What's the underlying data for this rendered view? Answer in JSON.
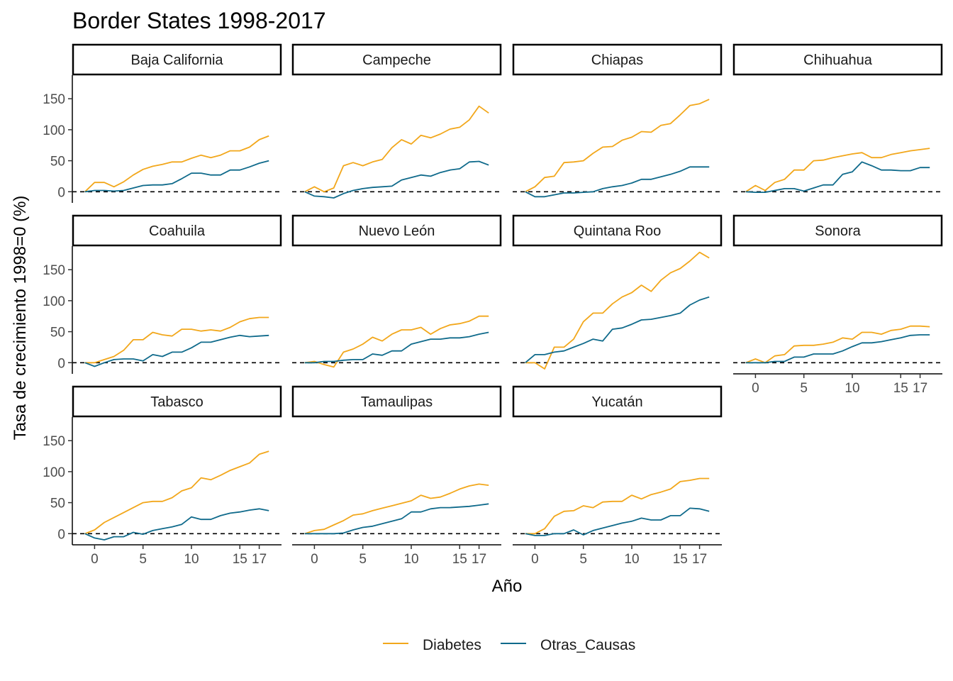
{
  "chart_data": {
    "type": "line",
    "title": "Border States 1998-2017",
    "xlabel": "Año",
    "ylabel": "Tasa de crecimiento 1998=0 (%)",
    "x": [
      -1,
      0,
      1,
      2,
      3,
      4,
      5,
      6,
      7,
      8,
      9,
      10,
      11,
      12,
      13,
      14,
      15,
      16,
      17,
      18
    ],
    "xlim": [
      -2.3,
      19.3
    ],
    "ylim": [
      -18,
      188
    ],
    "x_ticks": [
      0,
      5,
      10,
      15,
      17
    ],
    "x_tick_labels": [
      "0",
      "5",
      "10",
      "15",
      "17"
    ],
    "y_ticks": [
      0,
      50,
      100,
      150
    ],
    "y_tick_labels": [
      "0",
      "50",
      "100",
      "150"
    ],
    "reference_line": 0,
    "legend_position": "bottom",
    "colors": {
      "Diabetes": "#F2A71B",
      "Otras_Causas": "#0F6A8B"
    },
    "grid": false,
    "panels": [
      {
        "name": "Baja California",
        "series": [
          {
            "name": "Diabetes",
            "values": [
              0,
              15,
              15,
              8,
              16,
              27,
              36,
              41,
              44,
              48,
              48,
              54,
              59,
              55,
              59,
              66,
              66,
              72,
              84,
              90
            ]
          },
          {
            "name": "Otras_Causas",
            "values": [
              0,
              2,
              2,
              1,
              2,
              6,
              10,
              11,
              11,
              13,
              21,
              30,
              30,
              27,
              27,
              35,
              35,
              40,
              46,
              50
            ]
          }
        ]
      },
      {
        "name": "Campeche",
        "series": [
          {
            "name": "Diabetes",
            "values": [
              0,
              8,
              0,
              6,
              42,
              47,
              42,
              48,
              52,
              71,
              84,
              77,
              91,
              87,
              93,
              101,
              104,
              116,
              138,
              127
            ]
          },
          {
            "name": "Otras_Causas",
            "values": [
              0,
              -7,
              -8,
              -10,
              -3,
              2,
              5,
              7,
              8,
              9,
              19,
              23,
              27,
              25,
              31,
              35,
              37,
              48,
              49,
              43
            ]
          }
        ]
      },
      {
        "name": "Chiapas",
        "series": [
          {
            "name": "Diabetes",
            "values": [
              0,
              8,
              23,
              25,
              47,
              48,
              50,
              62,
              72,
              73,
              83,
              88,
              97,
              96,
              107,
              110,
              124,
              139,
              142,
              149
            ]
          },
          {
            "name": "Otras_Causas",
            "values": [
              0,
              -8,
              -8,
              -5,
              -2,
              -2,
              -1,
              0,
              5,
              8,
              10,
              14,
              20,
              20,
              24,
              28,
              33,
              40,
              40,
              40
            ]
          }
        ]
      },
      {
        "name": "Chihuahua",
        "series": [
          {
            "name": "Diabetes",
            "values": [
              0,
              10,
              2,
              15,
              20,
              35,
              35,
              50,
              51,
              55,
              58,
              61,
              63,
              55,
              55,
              60,
              63,
              66,
              68,
              70
            ]
          },
          {
            "name": "Otras_Causas",
            "values": [
              0,
              -1,
              -1,
              2,
              5,
              5,
              1,
              6,
              11,
              11,
              28,
              32,
              48,
              42,
              35,
              35,
              34,
              34,
              39,
              39
            ]
          }
        ]
      },
      {
        "name": "Coahuila",
        "series": [
          {
            "name": "Diabetes",
            "values": [
              0,
              0,
              5,
              10,
              20,
              37,
              37,
              49,
              45,
              43,
              54,
              54,
              51,
              53,
              51,
              57,
              66,
              71,
              73,
              73
            ]
          },
          {
            "name": "Otras_Causas",
            "values": [
              0,
              -6,
              0,
              5,
              6,
              6,
              3,
              13,
              10,
              17,
              17,
              24,
              33,
              33,
              37,
              41,
              44,
              42,
              43,
              44
            ]
          }
        ]
      },
      {
        "name": "Nuevo León",
        "series": [
          {
            "name": "Diabetes",
            "values": [
              0,
              2,
              -3,
              -7,
              17,
              22,
              30,
              41,
              35,
              46,
              53,
              53,
              57,
              46,
              55,
              61,
              63,
              67,
              75,
              75
            ]
          },
          {
            "name": "Otras_Causas",
            "values": [
              0,
              0,
              2,
              2,
              4,
              5,
              5,
              14,
              12,
              19,
              19,
              30,
              34,
              38,
              38,
              40,
              40,
              42,
              46,
              49
            ]
          }
        ]
      },
      {
        "name": "Quintana Roo",
        "series": [
          {
            "name": "Diabetes",
            "values": [
              0,
              0,
              -10,
              25,
              25,
              38,
              66,
              80,
              80,
              95,
              106,
              113,
              125,
              115,
              133,
              145,
              152,
              164,
              178,
              169
            ]
          },
          {
            "name": "Otras_Causas",
            "values": [
              0,
              13,
              13,
              17,
              19,
              25,
              31,
              38,
              35,
              54,
              56,
              62,
              69,
              70,
              73,
              76,
              80,
              93,
              101,
              106
            ]
          }
        ]
      },
      {
        "name": "Sonora",
        "series": [
          {
            "name": "Diabetes",
            "values": [
              0,
              6,
              0,
              11,
              13,
              27,
              28,
              28,
              30,
              33,
              40,
              38,
              49,
              49,
              46,
              52,
              54,
              59,
              59,
              58
            ]
          },
          {
            "name": "Otras_Causas",
            "values": [
              0,
              0,
              0,
              2,
              2,
              9,
              9,
              14,
              14,
              14,
              19,
              26,
              32,
              32,
              34,
              37,
              40,
              44,
              45,
              45
            ]
          }
        ]
      },
      {
        "name": "Tabasco",
        "series": [
          {
            "name": "Diabetes",
            "values": [
              0,
              6,
              18,
              26,
              34,
              42,
              50,
              52,
              52,
              58,
              69,
              74,
              90,
              87,
              94,
              102,
              108,
              114,
              128,
              133
            ]
          },
          {
            "name": "Otras_Causas",
            "values": [
              0,
              -7,
              -10,
              -5,
              -5,
              2,
              -1,
              5,
              8,
              11,
              15,
              27,
              23,
              23,
              29,
              33,
              35,
              38,
              40,
              37
            ]
          }
        ]
      },
      {
        "name": "Tamaulipas",
        "series": [
          {
            "name": "Diabetes",
            "values": [
              0,
              5,
              7,
              14,
              21,
              30,
              32,
              37,
              41,
              45,
              49,
              53,
              62,
              57,
              59,
              65,
              72,
              77,
              80,
              78
            ]
          },
          {
            "name": "Otras_Causas",
            "values": [
              0,
              0,
              0,
              0,
              1,
              6,
              10,
              12,
              16,
              20,
              24,
              35,
              35,
              40,
              42,
              42,
              43,
              44,
              46,
              48
            ]
          }
        ]
      },
      {
        "name": "Yucatán",
        "series": [
          {
            "name": "Diabetes",
            "values": [
              0,
              0,
              8,
              28,
              36,
              37,
              45,
              42,
              51,
              52,
              52,
              62,
              56,
              63,
              67,
              72,
              84,
              86,
              89,
              89
            ]
          },
          {
            "name": "Otras_Causas",
            "values": [
              0,
              -3,
              -3,
              0,
              0,
              6,
              -2,
              5,
              9,
              13,
              17,
              20,
              25,
              22,
              22,
              29,
              29,
              41,
              40,
              36
            ]
          }
        ]
      }
    ]
  }
}
